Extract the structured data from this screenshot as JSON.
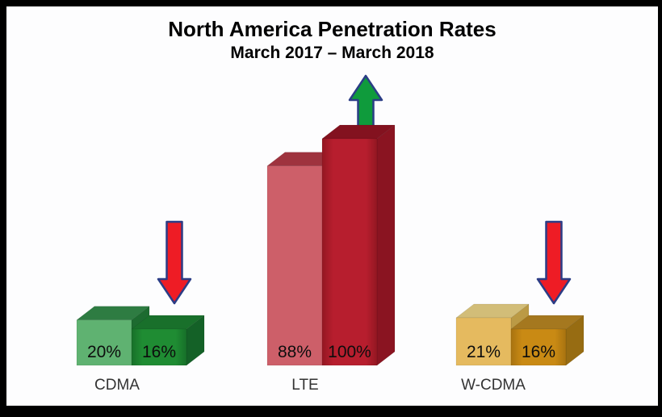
{
  "chart_data": {
    "type": "bar",
    "title": "North America Penetration Rates",
    "subtitle": "March 2017 – March 2018",
    "categories": [
      "CDMA",
      "LTE",
      "W-CDMA"
    ],
    "series": [
      {
        "name": "March 2017",
        "values": [
          20,
          88,
          21
        ]
      },
      {
        "name": "March 2018",
        "values": [
          16,
          100,
          16
        ]
      }
    ],
    "value_labels": [
      [
        "20%",
        "16%"
      ],
      [
        "88%",
        "100%"
      ],
      [
        "21%",
        "16%"
      ]
    ],
    "unit": "%",
    "ylim": [
      0,
      100
    ],
    "grid": false,
    "legend": "none",
    "style": "3d-clustered",
    "trend_arrows": [
      {
        "category": "CDMA",
        "direction": "down",
        "fill": "#ee1c25",
        "outline": "#2b3d86"
      },
      {
        "category": "LTE",
        "direction": "up",
        "fill": "#0f9b3c",
        "outline": "#2b3d86"
      },
      {
        "category": "W-CDMA",
        "direction": "down",
        "fill": "#ee1c25",
        "outline": "#2b3d86"
      }
    ],
    "group_colors": [
      {
        "front1": "#5fb271",
        "top1": "#2e7c42",
        "side1": "#1d6b30",
        "front2": "#1f8c33",
        "front2_edge": "#177029",
        "top2": "#19702b",
        "side2": "#146127"
      },
      {
        "front1": "#cd5f69",
        "top1": "#9e333e",
        "side1": "#8f2a35",
        "front2": "#b71e2e",
        "front2_edge": "#931722",
        "top2": "#83121f",
        "side2": "#8a1421"
      },
      {
        "front1": "#e5ba5f",
        "top1": "#d2bd78",
        "side1": "#bb9a45",
        "front2": "#c98a14",
        "front2_edge": "#a87310",
        "top2": "#a5781f",
        "side2": "#976c12"
      }
    ],
    "value_label_color": "#0d0d0d",
    "frame_color": "#000000",
    "background_color": "#fdfdfe"
  }
}
